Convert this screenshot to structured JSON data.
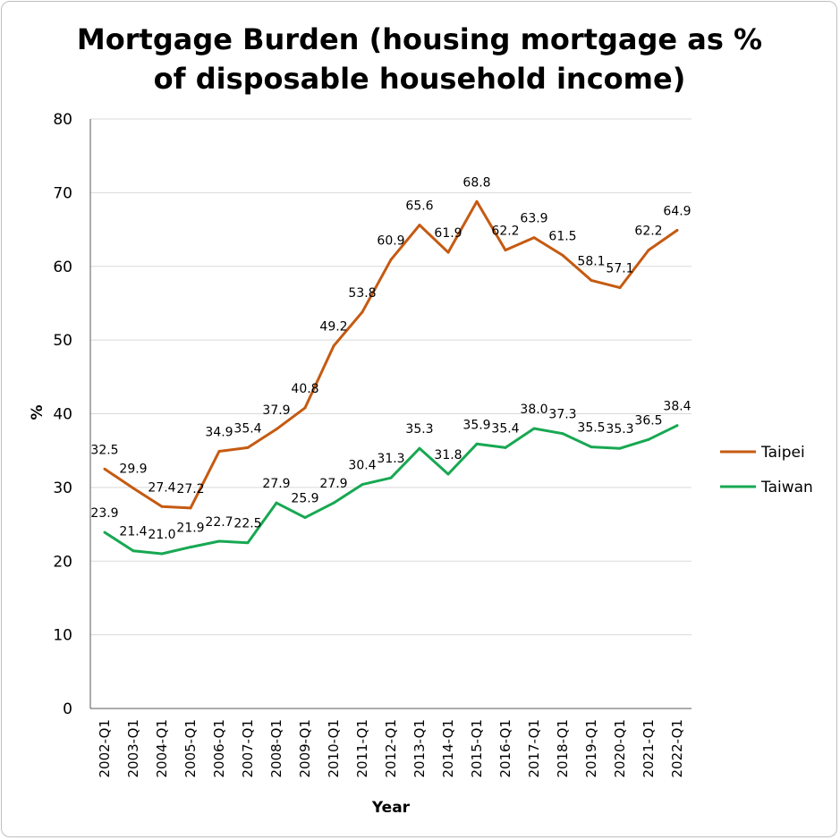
{
  "chart_data": {
    "type": "line",
    "title_lines": [
      "Mortgage Burden (housing mortgage as %",
      "of disposable household income)"
    ],
    "xlabel": "Year",
    "ylabel": "%",
    "ylim": [
      0,
      80
    ],
    "yticks": [
      "0",
      "10",
      "20",
      "30",
      "40",
      "50",
      "60",
      "70",
      "80"
    ],
    "grid": true,
    "legend_position": "right",
    "categories": [
      "2002-Q1",
      "2003-Q1",
      "2004-Q1",
      "2005-Q1",
      "2006-Q1",
      "2007-Q1",
      "2008-Q1",
      "2009-Q1",
      "2010-Q1",
      "2011-Q1",
      "2012-Q1",
      "2013-Q1",
      "2014-Q1",
      "2015-Q1",
      "2016-Q1",
      "2017-Q1",
      "2018-Q1",
      "2019-Q1",
      "2020-Q1",
      "2021-Q1",
      "2022-Q1"
    ],
    "series": [
      {
        "name": "Taipei",
        "color": "#c55a11",
        "values": [
          32.5,
          29.9,
          27.4,
          27.2,
          34.9,
          35.4,
          37.9,
          40.8,
          49.2,
          53.8,
          60.9,
          65.6,
          61.9,
          68.8,
          62.2,
          63.9,
          61.5,
          58.1,
          57.1,
          62.2,
          64.9
        ],
        "labels": [
          "32.5",
          "29.9",
          "27.4",
          "27.2",
          "34.9",
          "35.4",
          "37.9",
          "40.8",
          "49.2",
          "53.8",
          "60.9",
          "65.6",
          "61.9",
          "68.8",
          "62.2",
          "63.9",
          "61.5",
          "58.1",
          "57.1",
          "62.2",
          "64.9"
        ]
      },
      {
        "name": "Taiwan",
        "color": "#17a852",
        "values": [
          23.9,
          21.4,
          21.0,
          21.9,
          22.7,
          22.5,
          27.9,
          25.9,
          27.9,
          30.4,
          31.3,
          35.3,
          31.8,
          35.9,
          35.4,
          38.0,
          37.3,
          35.5,
          35.3,
          36.5,
          38.4
        ],
        "labels": [
          "23.9",
          "21.4",
          "21.0",
          "21.9",
          "22.7",
          "22.5",
          "27.9",
          "25.9",
          "27.9",
          "30.4",
          "31.3",
          "35.3",
          "31.8",
          "35.9",
          "35.4",
          "38.0",
          "37.3",
          "35.5",
          "35.3",
          "36.5",
          "38.4"
        ]
      }
    ]
  }
}
